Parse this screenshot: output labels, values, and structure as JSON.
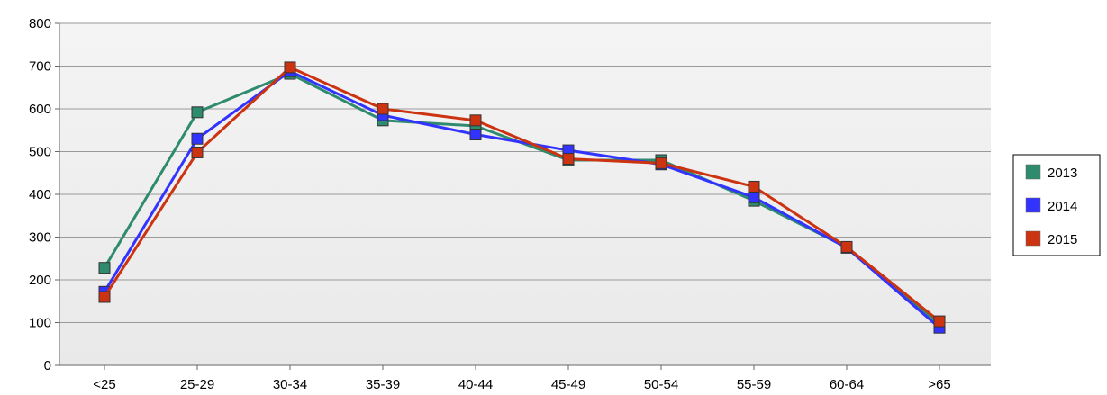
{
  "chart_data": {
    "type": "line",
    "categories": [
      "<25",
      "25-29",
      "30-34",
      "35-39",
      "40-44",
      "45-49",
      "50-54",
      "55-59",
      "60-64",
      ">65"
    ],
    "series": [
      {
        "name": "2013",
        "color": "#2e8b6e",
        "values": [
          228,
          592,
          682,
          573,
          560,
          480,
          480,
          385,
          276,
          97
        ]
      },
      {
        "name": "2014",
        "color": "#3333ff",
        "values": [
          172,
          530,
          688,
          585,
          540,
          503,
          470,
          393,
          275,
          88
        ]
      },
      {
        "name": "2015",
        "color": "#cc3311",
        "values": [
          160,
          498,
          697,
          600,
          573,
          483,
          473,
          418,
          277,
          103
        ]
      }
    ],
    "yticks": [
      "0",
      "100",
      "200",
      "300",
      "400",
      "500",
      "600",
      "700",
      "800"
    ],
    "ylim": [
      0,
      800
    ],
    "grid": true,
    "legend_position": "right"
  }
}
